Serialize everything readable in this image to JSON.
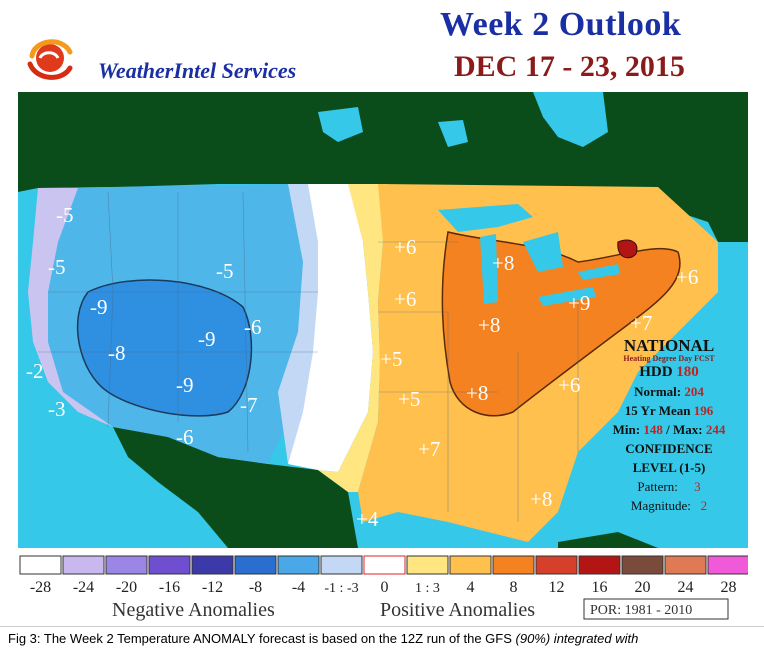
{
  "header": {
    "brand": "WeatherIntel Services",
    "title": "Week 2 Outlook",
    "date_range": "DEC 17 - 23, 2015"
  },
  "map": {
    "anomaly_labels": [
      "-5",
      "-5",
      "-5",
      "-9",
      "-9",
      "-8",
      "-6",
      "-2",
      "-3",
      "-9",
      "-7",
      "-6",
      "+6",
      "+6",
      "+8",
      "+9",
      "+8",
      "+7",
      "+6",
      "+5",
      "+5",
      "+8",
      "+6",
      "+7",
      "+8",
      "+4"
    ],
    "national_box": {
      "title": "NATIONAL",
      "subtitle": "Heating Degree Day FCST",
      "hdd_label": "HDD",
      "hdd_value": "180",
      "normal_label": "Normal:",
      "normal_value": "204",
      "mean_label": "15 Yr Mean",
      "mean_value": "196",
      "min_label": "Min:",
      "min_value": "148",
      "max_label": "/ Max:",
      "max_value": "244",
      "confidence_label": "CONFIDENCE",
      "level_label": "LEVEL (1-5)",
      "pattern_label": "Pattern:",
      "pattern_value": "3",
      "magnitude_label": "Magnitude:",
      "magnitude_value": "2"
    }
  },
  "legend": {
    "tick_labels": [
      "-28",
      "-24",
      "-20",
      "-16",
      "-12",
      "-8",
      "-4",
      "-1 : -3",
      "0",
      "1 : 3",
      "4",
      "8",
      "12",
      "16",
      "20",
      "24",
      "28"
    ],
    "swatch_colors": [
      "#ffffff",
      "#c9b8f0",
      "#9b86e6",
      "#6f4fd0",
      "#3b3aa8",
      "#2a6fd0",
      "#4aa8e8",
      "#c3d8f5",
      "#ffffff",
      "#ffe680",
      "#ffc04d",
      "#f58220",
      "#d6402a",
      "#b31515",
      "#7a4a3a",
      "#e07a55",
      "#f05ad8"
    ],
    "negative_label": "Negative Anomalies",
    "positive_label": "Positive Anomalies",
    "por_label": "POR: 1981 - 2010"
  },
  "caption": {
    "text_1": "Fig 3: The Week 2 Temperature ANOMALY forecast is based on the 12Z run of the GFS ",
    "text_em": "(90%) integrated with"
  }
}
